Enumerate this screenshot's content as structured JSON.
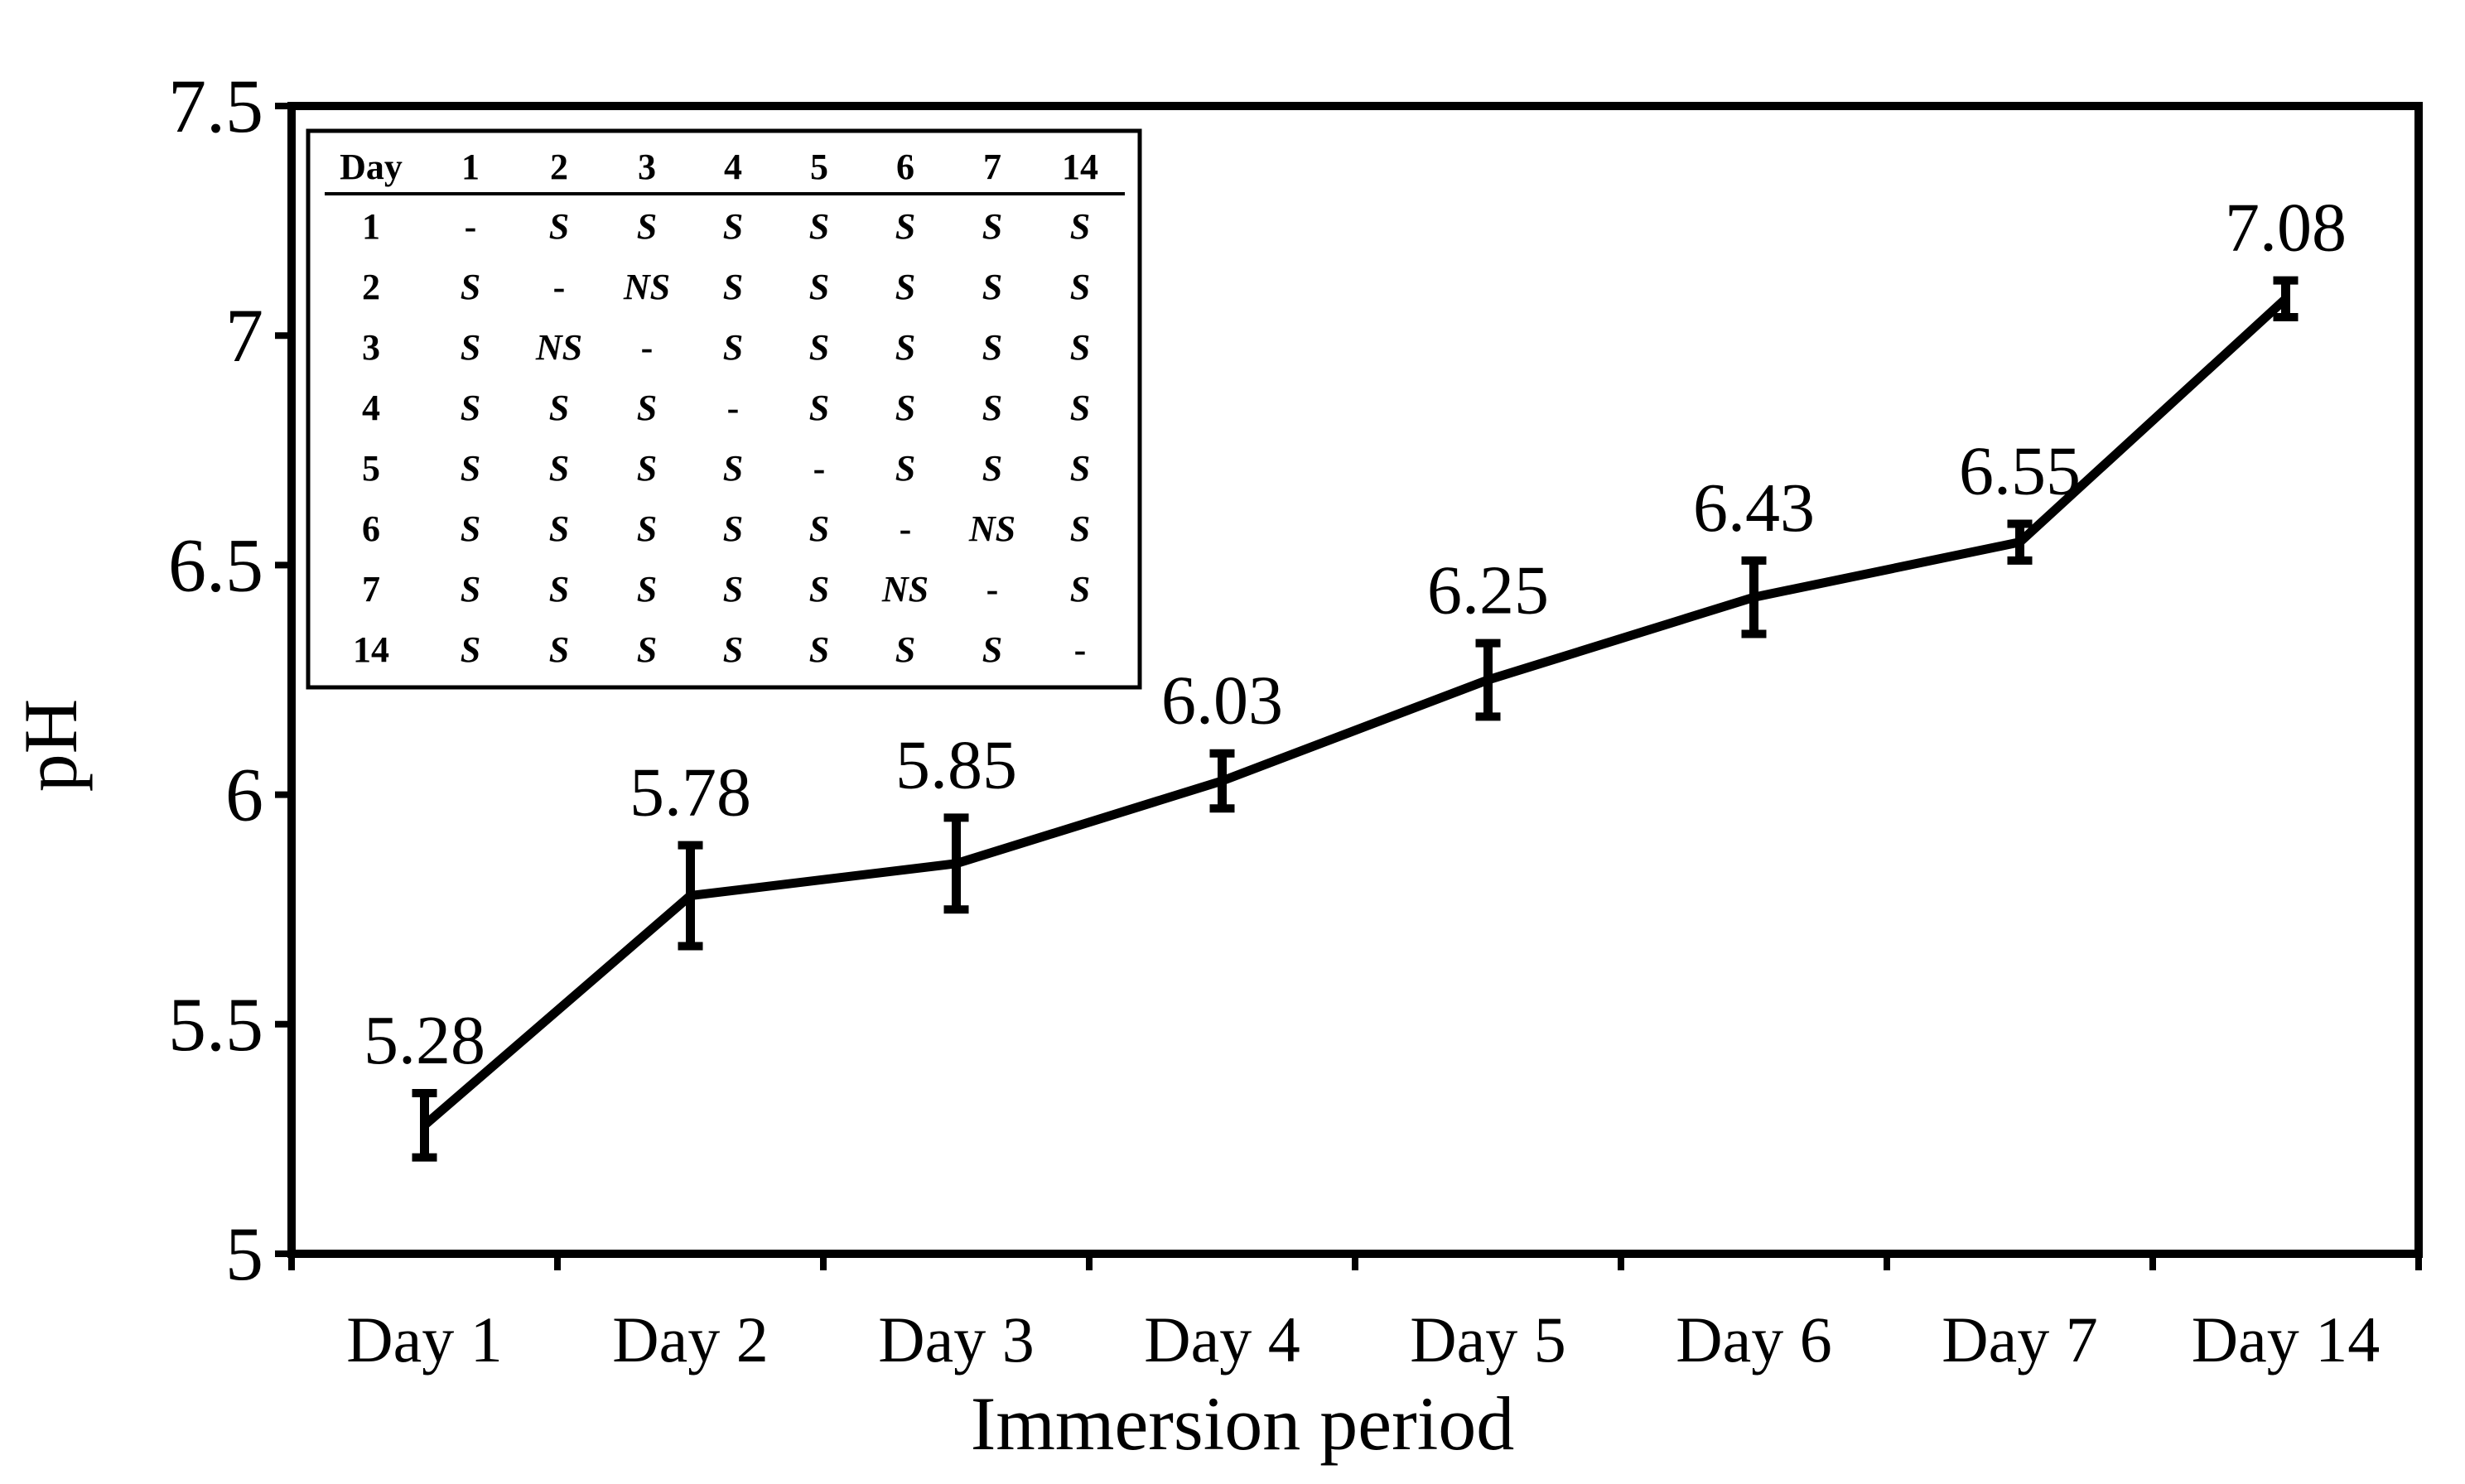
{
  "chart_data": {
    "type": "line",
    "categories": [
      "Day 1",
      "Day 2",
      "Day 3",
      "Day 4",
      "Day 5",
      "Day 6",
      "Day 7",
      "Day 14"
    ],
    "values": [
      5.28,
      5.78,
      5.85,
      6.03,
      6.25,
      6.43,
      6.55,
      7.08
    ],
    "value_labels": [
      "5.28",
      "5.78",
      "5.85",
      "6.03",
      "6.25",
      "6.43",
      "6.55",
      "7.08"
    ],
    "error": [
      0.07,
      0.11,
      0.1,
      0.06,
      0.08,
      0.08,
      0.04,
      0.04
    ],
    "xlabel": "Immersion period",
    "ylabel": "pH",
    "ylim": [
      5,
      7.5
    ],
    "yticks": [
      5,
      5.5,
      6,
      6.5,
      7,
      7.5
    ],
    "ytick_labels": [
      "5",
      "5.5",
      "6",
      "6.5",
      "7",
      "7.5"
    ],
    "grid": false,
    "significance_table": {
      "header": [
        "Day",
        "1",
        "2",
        "3",
        "4",
        "5",
        "6",
        "7",
        "14"
      ],
      "rows": [
        [
          "1",
          "-",
          "S",
          "S",
          "S",
          "S",
          "S",
          "S",
          "S"
        ],
        [
          "2",
          "S",
          "-",
          "NS",
          "S",
          "S",
          "S",
          "S",
          "S"
        ],
        [
          "3",
          "S",
          "NS",
          "-",
          "S",
          "S",
          "S",
          "S",
          "S"
        ],
        [
          "4",
          "S",
          "S",
          "S",
          "-",
          "S",
          "S",
          "S",
          "S"
        ],
        [
          "5",
          "S",
          "S",
          "S",
          "S",
          "-",
          "S",
          "S",
          "S"
        ],
        [
          "6",
          "S",
          "S",
          "S",
          "S",
          "S",
          "-",
          "NS",
          "S"
        ],
        [
          "7",
          "S",
          "S",
          "S",
          "S",
          "S",
          "NS",
          "-",
          "S"
        ],
        [
          "14",
          "S",
          "S",
          "S",
          "S",
          "S",
          "S",
          "S",
          "-"
        ]
      ]
    }
  }
}
